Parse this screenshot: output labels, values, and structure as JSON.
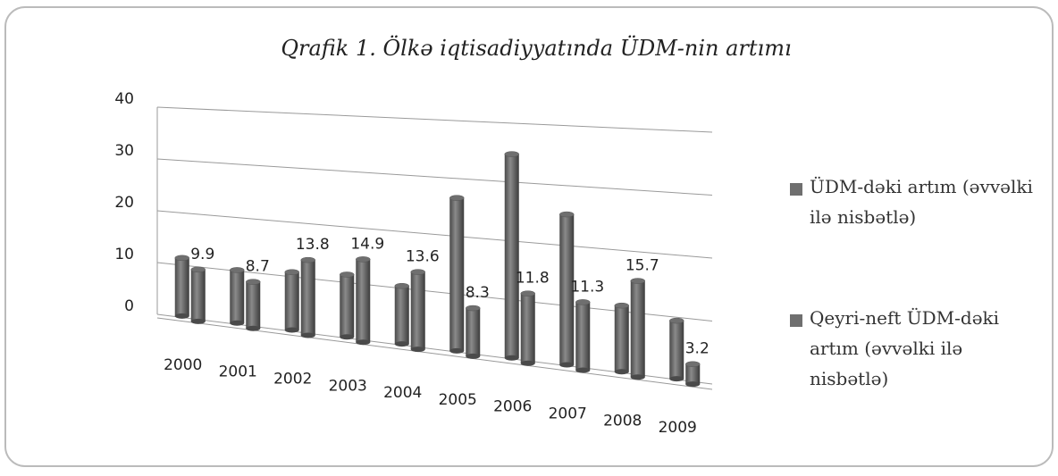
{
  "chart_data": {
    "type": "bar3d",
    "title": "Qrafik 1. Ölkə iqtisadiyyatında ÜDM-nin artımı",
    "categories": [
      "2000",
      "2001",
      "2002",
      "2003",
      "2004",
      "2005",
      "2006",
      "2007",
      "2008",
      "2009"
    ],
    "series": [
      {
        "name": "ÜDM-dəki artım (əvvəlki ilə nisbətlə)",
        "color": "#6f6f6f",
        "values": [
          11.1,
          9.9,
          10.6,
          11.2,
          10.2,
          26.4,
          34.5,
          25.0,
          10.8,
          9.3
        ]
      },
      {
        "name": "Qeyri-neft ÜDM-dəki artım (əvvəlki ilə nisbətlə)",
        "color": "#6f6f6f",
        "values": [
          9.9,
          8.7,
          13.8,
          14.9,
          13.6,
          8.3,
          11.8,
          11.3,
          15.7,
          3.2
        ]
      }
    ],
    "ylim": [
      0,
      40
    ],
    "yticks": [
      0,
      10,
      20,
      30,
      40
    ],
    "grid": true,
    "legend": "right"
  }
}
